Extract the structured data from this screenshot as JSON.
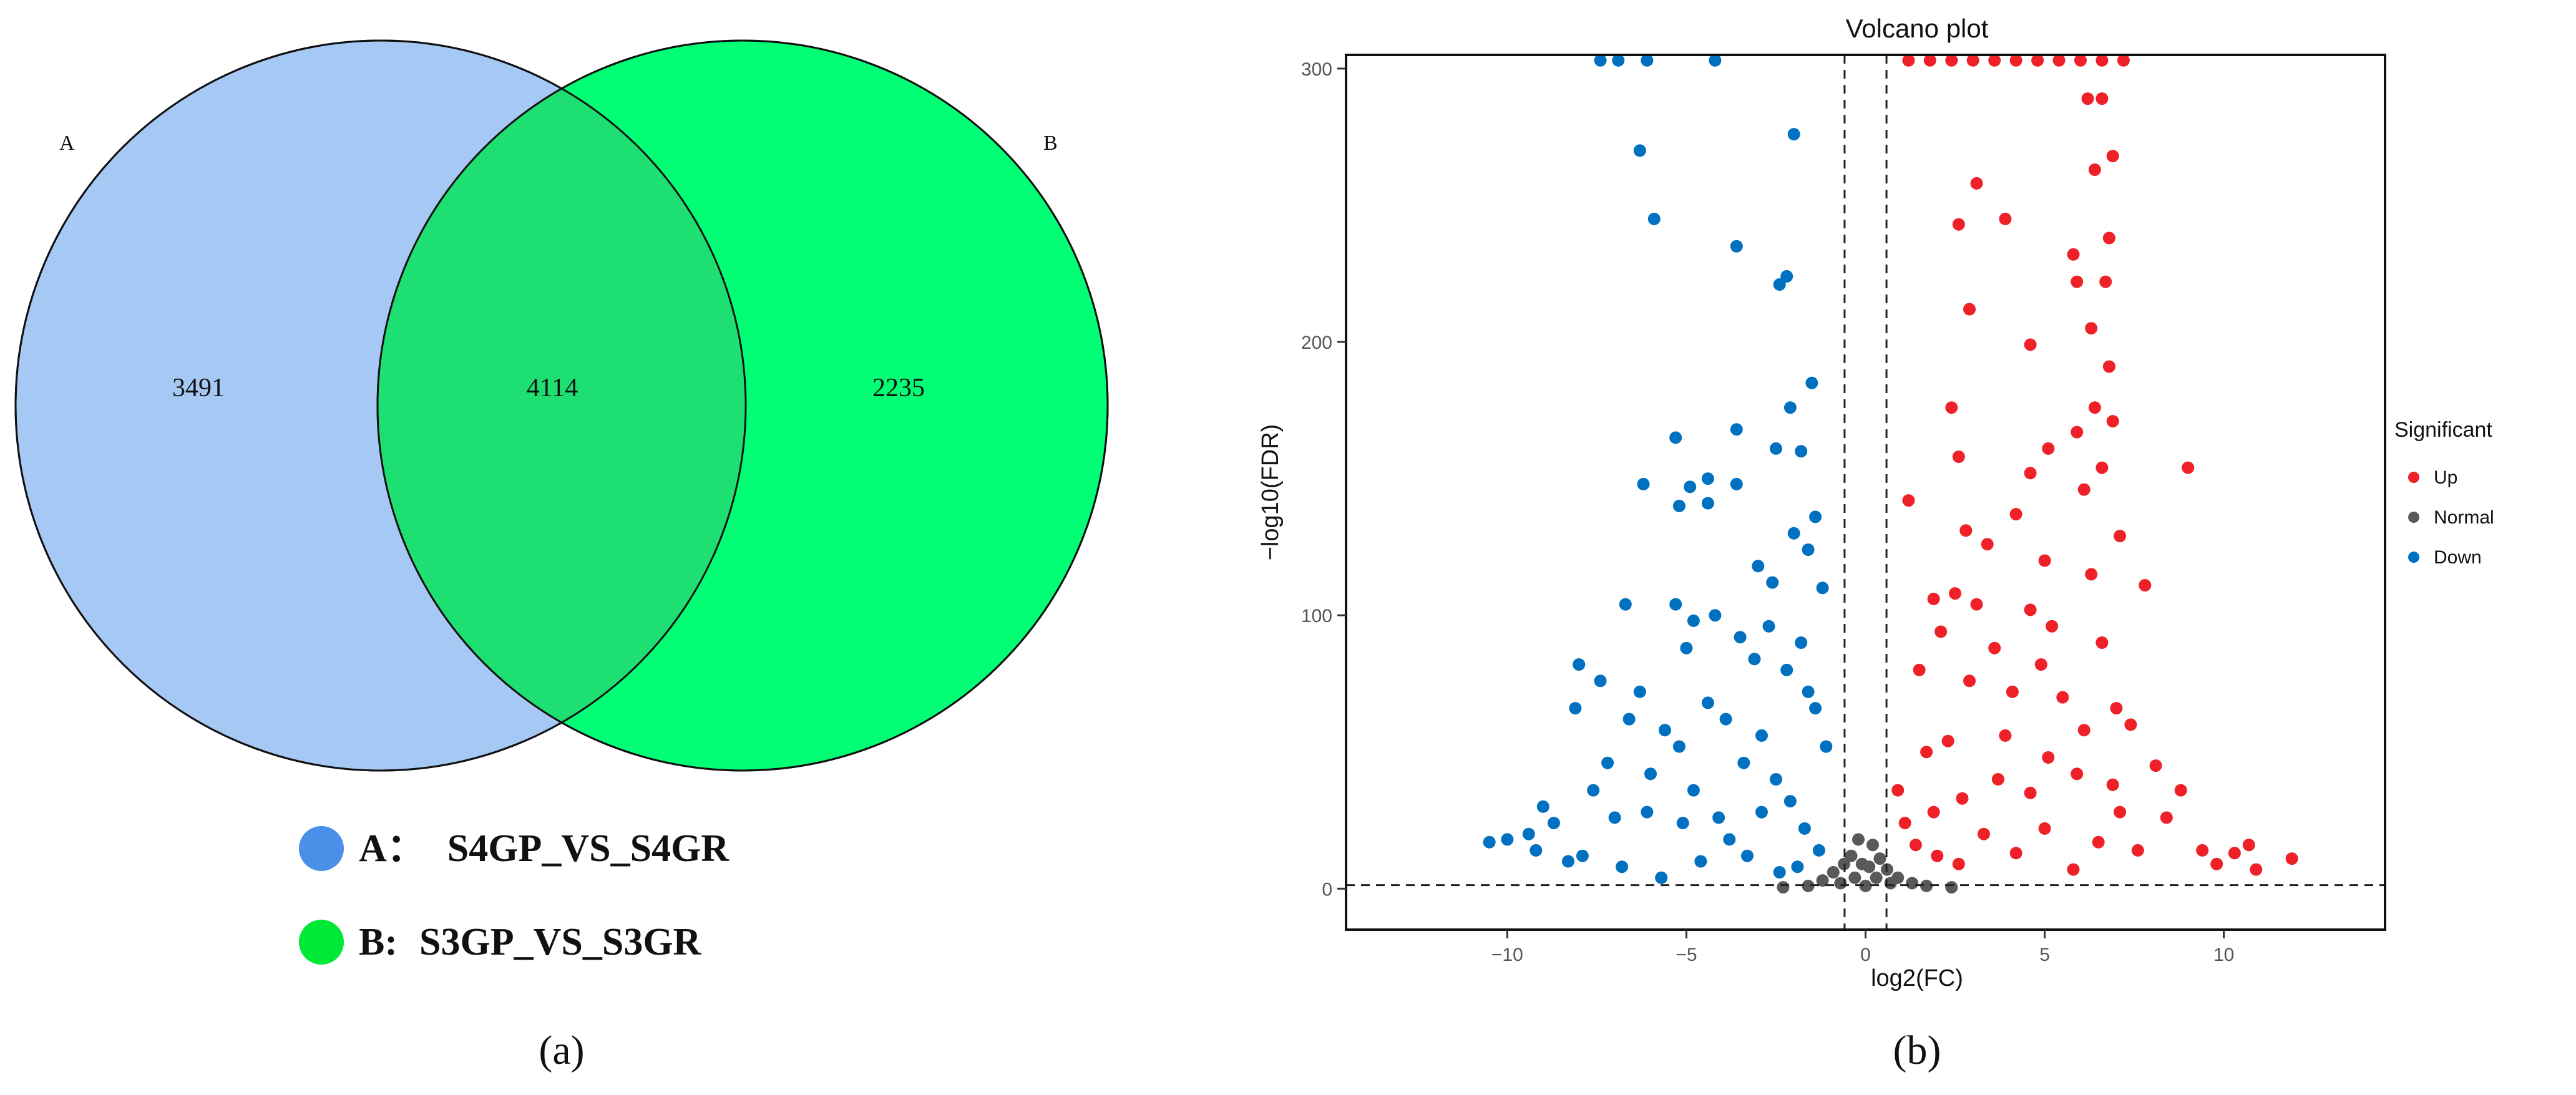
{
  "panel_a": {
    "panel_label": "(a)",
    "chart_data": {
      "type": "venn",
      "sets": [
        {
          "name": "A",
          "color": "#a6c8f5",
          "legend_marker": "#4a90e8"
        },
        {
          "name": "B",
          "color": "#00ff74",
          "legend_marker": "#00e838"
        }
      ],
      "regions": {
        "A_only": 3491,
        "A_and_B": 4114,
        "B_only": 2235
      },
      "intersection_color": "#1ee072",
      "legend": [
        {
          "key": "A",
          "sep": "：",
          "label": "S4GP_VS_S4GR"
        },
        {
          "key": "B",
          "sep": ":",
          "label": "S3GP_VS_S3GR"
        }
      ]
    }
  },
  "panel_b": {
    "panel_label": "(b)",
    "chart_data": {
      "type": "scatter",
      "title": "Volcano plot",
      "xlabel": "log2(FC)",
      "ylabel": "−log10(FDR)",
      "xlim": [
        -14.5,
        14.5
      ],
      "ylim": [
        -15,
        305
      ],
      "xticks": [
        -10,
        -5,
        0,
        5,
        10
      ],
      "xtick_labels": [
        "−10",
        "−5",
        "0",
        "5",
        "10"
      ],
      "yticks": [
        0,
        100,
        200,
        300
      ],
      "thresholds": {
        "x": [
          -0.585,
          0.585
        ],
        "y": 1.3
      },
      "grid": false,
      "legend": {
        "title": "Significant",
        "placement": "right",
        "entries": [
          {
            "name": "Up",
            "color": "#ee2128"
          },
          {
            "name": "Normal",
            "color": "#595959"
          },
          {
            "name": "Down",
            "color": "#0070c0"
          }
        ]
      },
      "series": [
        {
          "name": "Up",
          "color": "#ee2128",
          "points": [
            [
              1.2,
              303
            ],
            [
              1.8,
              303
            ],
            [
              2.4,
              303
            ],
            [
              3.0,
              303
            ],
            [
              3.6,
              303
            ],
            [
              4.2,
              303
            ],
            [
              4.8,
              303
            ],
            [
              5.4,
              303
            ],
            [
              6.0,
              303
            ],
            [
              6.6,
              303
            ],
            [
              7.2,
              303
            ],
            [
              6.2,
              289
            ],
            [
              6.6,
              289
            ],
            [
              6.4,
              263
            ],
            [
              6.9,
              268
            ],
            [
              3.1,
              258
            ],
            [
              2.6,
              243
            ],
            [
              3.9,
              245
            ],
            [
              5.8,
              232
            ],
            [
              6.8,
              238
            ],
            [
              5.9,
              222
            ],
            [
              6.7,
              222
            ],
            [
              2.9,
              212
            ],
            [
              6.3,
              205
            ],
            [
              4.6,
              199
            ],
            [
              6.8,
              191
            ],
            [
              2.4,
              176
            ],
            [
              6.4,
              176
            ],
            [
              5.9,
              167
            ],
            [
              6.9,
              171
            ],
            [
              5.1,
              161
            ],
            [
              4.6,
              152
            ],
            [
              2.6,
              158
            ],
            [
              6.6,
              154
            ],
            [
              6.1,
              146
            ],
            [
              1.2,
              142
            ],
            [
              4.2,
              137
            ],
            [
              9.0,
              154
            ],
            [
              2.8,
              131
            ],
            [
              7.1,
              129
            ],
            [
              3.4,
              126
            ],
            [
              5.0,
              120
            ],
            [
              6.3,
              115
            ],
            [
              7.8,
              111
            ],
            [
              1.9,
              106
            ],
            [
              2.5,
              108
            ],
            [
              3.1,
              104
            ],
            [
              4.6,
              102
            ],
            [
              5.2,
              96
            ],
            [
              6.6,
              90
            ],
            [
              2.1,
              94
            ],
            [
              3.6,
              88
            ],
            [
              4.9,
              82
            ],
            [
              1.5,
              80
            ],
            [
              2.9,
              76
            ],
            [
              4.1,
              72
            ],
            [
              5.5,
              70
            ],
            [
              7.0,
              66
            ],
            [
              7.4,
              60
            ],
            [
              6.1,
              58
            ],
            [
              3.9,
              56
            ],
            [
              2.3,
              54
            ],
            [
              1.7,
              50
            ],
            [
              5.1,
              48
            ],
            [
              8.1,
              45
            ],
            [
              8.8,
              36
            ],
            [
              8.4,
              26
            ],
            [
              9.4,
              14
            ],
            [
              10.3,
              13
            ],
            [
              10.7,
              16
            ],
            [
              11.9,
              11
            ],
            [
              9.8,
              9
            ],
            [
              10.9,
              7
            ],
            [
              0.9,
              36
            ],
            [
              1.1,
              24
            ],
            [
              1.4,
              16
            ],
            [
              2.0,
              12
            ],
            [
              2.6,
              9
            ],
            [
              3.3,
              20
            ],
            [
              4.2,
              13
            ],
            [
              5.0,
              22
            ],
            [
              5.8,
              7
            ],
            [
              6.5,
              17
            ],
            [
              7.1,
              28
            ],
            [
              3.7,
              40
            ],
            [
              2.7,
              33
            ],
            [
              1.9,
              28
            ],
            [
              4.6,
              35
            ],
            [
              5.9,
              42
            ],
            [
              6.9,
              38
            ],
            [
              7.6,
              14
            ]
          ]
        },
        {
          "name": "Normal",
          "color": "#595959",
          "points": [
            [
              -1.2,
              3
            ],
            [
              -0.9,
              6
            ],
            [
              -0.6,
              9
            ],
            [
              -0.4,
              12
            ],
            [
              -0.2,
              18
            ],
            [
              0.0,
              1
            ],
            [
              0.2,
              16
            ],
            [
              0.4,
              11
            ],
            [
              0.6,
              7
            ],
            [
              0.9,
              4
            ],
            [
              1.3,
              2
            ],
            [
              -1.6,
              1
            ],
            [
              1.7,
              1
            ],
            [
              -2.3,
              0.5
            ],
            [
              2.4,
              0.5
            ],
            [
              -0.3,
              4
            ],
            [
              0.3,
              4
            ],
            [
              -0.1,
              9
            ],
            [
              0.1,
              8
            ],
            [
              -0.7,
              2
            ],
            [
              0.7,
              2
            ]
          ]
        },
        {
          "name": "Down",
          "color": "#0070c0",
          "points": [
            [
              -7.4,
              303
            ],
            [
              -6.9,
              303
            ],
            [
              -6.1,
              303
            ],
            [
              -4.2,
              303
            ],
            [
              -2.0,
              276
            ],
            [
              -6.3,
              270
            ],
            [
              -5.9,
              245
            ],
            [
              -3.6,
              235
            ],
            [
              -2.2,
              224
            ],
            [
              -2.4,
              221
            ],
            [
              -1.5,
              185
            ],
            [
              -2.1,
              176
            ],
            [
              -5.3,
              165
            ],
            [
              -3.6,
              168
            ],
            [
              -2.5,
              161
            ],
            [
              -1.8,
              160
            ],
            [
              -6.2,
              148
            ],
            [
              -4.9,
              147
            ],
            [
              -4.4,
              150
            ],
            [
              -3.6,
              148
            ],
            [
              -5.2,
              140
            ],
            [
              -4.4,
              141
            ],
            [
              -1.4,
              136
            ],
            [
              -2.0,
              130
            ],
            [
              -1.6,
              124
            ],
            [
              -3.0,
              118
            ],
            [
              -2.6,
              112
            ],
            [
              -1.2,
              110
            ],
            [
              -5.3,
              104
            ],
            [
              -6.7,
              104
            ],
            [
              -4.2,
              100
            ],
            [
              -4.8,
              98
            ],
            [
              -3.5,
              92
            ],
            [
              -2.7,
              96
            ],
            [
              -1.8,
              90
            ],
            [
              -5.0,
              88
            ],
            [
              -3.1,
              84
            ],
            [
              -8.0,
              82
            ],
            [
              -7.4,
              76
            ],
            [
              -6.3,
              72
            ],
            [
              -8.1,
              66
            ],
            [
              -6.6,
              62
            ],
            [
              -5.6,
              58
            ],
            [
              -2.2,
              80
            ],
            [
              -1.6,
              72
            ],
            [
              -4.4,
              68
            ],
            [
              -3.9,
              62
            ],
            [
              -2.9,
              56
            ],
            [
              -5.2,
              52
            ],
            [
              -7.2,
              46
            ],
            [
              -6.0,
              42
            ],
            [
              -3.4,
              46
            ],
            [
              -2.5,
              40
            ],
            [
              -1.4,
              66
            ],
            [
              -1.1,
              52
            ],
            [
              -4.8,
              36
            ],
            [
              -8.7,
              24
            ],
            [
              -9.4,
              20
            ],
            [
              -10.0,
              18
            ],
            [
              -10.5,
              17
            ],
            [
              -9.2,
              14
            ],
            [
              -7.9,
              12
            ],
            [
              -6.8,
              8
            ],
            [
              -5.7,
              4
            ],
            [
              -4.6,
              10
            ],
            [
              -3.8,
              18
            ],
            [
              -2.9,
              28
            ],
            [
              -2.1,
              32
            ],
            [
              -1.7,
              22
            ],
            [
              -1.3,
              14
            ],
            [
              -6.1,
              28
            ],
            [
              -7.0,
              26
            ],
            [
              -5.1,
              24
            ],
            [
              -4.1,
              26
            ],
            [
              -3.3,
              12
            ],
            [
              -2.4,
              6
            ],
            [
              -1.9,
              8
            ],
            [
              -8.3,
              10
            ],
            [
              -9.0,
              30
            ],
            [
              -7.6,
              36
            ]
          ]
        }
      ]
    }
  }
}
